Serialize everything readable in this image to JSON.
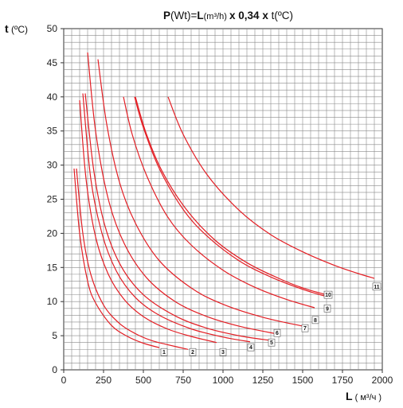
{
  "chart_data": {
    "type": "line",
    "title": "P(Wt)=L(m³/h) x 0,34 x t(ºC)",
    "title_parts": {
      "p": "P",
      "wt": "(Wt)=",
      "l": "L",
      "m3h": "(m³/h) ",
      "x1": "x 0,34 x ",
      "t": "t",
      "tc": "(ºC)"
    },
    "ylabel": "t (ºC)",
    "ylabel_parts": {
      "t": "t",
      "unit": " (ºC)"
    },
    "xlabel": "L ( м³/ч )",
    "xlabel_parts": {
      "l": "L",
      "unit": " ( м³/ч )"
    },
    "xlim": [
      0,
      2000
    ],
    "ylim": [
      0,
      50
    ],
    "x_ticks": [
      0,
      250,
      500,
      750,
      1000,
      1250,
      1500,
      1750,
      2000
    ],
    "y_ticks": [
      0,
      5,
      10,
      15,
      20,
      25,
      30,
      35,
      40,
      45,
      50
    ],
    "grid": true,
    "grid_minor_x": 50,
    "grid_minor_y": 1,
    "line_color": "#e31e24",
    "series": [
      {
        "name": "1",
        "label_at": [
          630,
          2.6
        ],
        "points": [
          [
            65,
            29.5
          ],
          [
            100,
            20
          ],
          [
            150,
            13
          ],
          [
            200,
            9.8
          ],
          [
            300,
            6.5
          ],
          [
            400,
            4.9
          ],
          [
            500,
            3.9
          ],
          [
            600,
            3.25
          ]
        ]
      },
      {
        "name": "2",
        "label_at": [
          810,
          2.6
        ],
        "points": [
          [
            80,
            29.5
          ],
          [
            120,
            20
          ],
          [
            170,
            14
          ],
          [
            250,
            9.5
          ],
          [
            350,
            6.8
          ],
          [
            450,
            5.3
          ],
          [
            550,
            4.3
          ],
          [
            650,
            3.7
          ],
          [
            780,
            3.0
          ]
        ]
      },
      {
        "name": "3",
        "label_at": [
          1000,
          2.6
        ],
        "points": [
          [
            100,
            39.5
          ],
          [
            140,
            28
          ],
          [
            200,
            19.5
          ],
          [
            280,
            14
          ],
          [
            380,
            10.3
          ],
          [
            500,
            7.8
          ],
          [
            650,
            6.0
          ],
          [
            800,
            4.9
          ],
          [
            960,
            4.0
          ]
        ]
      },
      {
        "name": "4",
        "label_at": [
          1175,
          3.3
        ],
        "points": [
          [
            120,
            40.5
          ],
          [
            170,
            28
          ],
          [
            240,
            20
          ],
          [
            330,
            14.5
          ],
          [
            450,
            10.6
          ],
          [
            600,
            8.0
          ],
          [
            800,
            6.0
          ],
          [
            1000,
            4.8
          ],
          [
            1170,
            4.1
          ]
        ]
      },
      {
        "name": "5",
        "label_at": [
          1305,
          4.0
        ],
        "points": [
          [
            135,
            40.5
          ],
          [
            190,
            29
          ],
          [
            260,
            21
          ],
          [
            360,
            15.2
          ],
          [
            500,
            11
          ],
          [
            700,
            7.9
          ],
          [
            900,
            6.1
          ],
          [
            1100,
            5.0
          ],
          [
            1300,
            4.3
          ]
        ]
      },
      {
        "name": "6",
        "label_at": [
          1340,
          5.4
        ],
        "points": [
          [
            150,
            46.5
          ],
          [
            200,
            35
          ],
          [
            280,
            25
          ],
          [
            380,
            18.5
          ],
          [
            520,
            13.5
          ],
          [
            700,
            10
          ],
          [
            900,
            7.8
          ],
          [
            1100,
            6.4
          ],
          [
            1330,
            5.3
          ]
        ]
      },
      {
        "name": "7",
        "label_at": [
          1515,
          6.1
        ],
        "points": [
          [
            215,
            45.5
          ],
          [
            270,
            36
          ],
          [
            350,
            27.5
          ],
          [
            450,
            21.5
          ],
          [
            600,
            16
          ],
          [
            800,
            12
          ],
          [
            1000,
            9.6
          ],
          [
            1250,
            7.7
          ],
          [
            1500,
            6.4
          ]
        ]
      },
      {
        "name": "8",
        "label_at": [
          1580,
          7.3
        ],
        "points": [
          [
            375,
            40
          ],
          [
            430,
            34.5
          ],
          [
            520,
            28.5
          ],
          [
            650,
            22.5
          ],
          [
            800,
            18.3
          ],
          [
            1000,
            14.6
          ],
          [
            1200,
            12.1
          ],
          [
            1400,
            10.3
          ],
          [
            1575,
            9.1
          ]
        ]
      },
      {
        "name": "9",
        "label_at": [
          1655,
          9.0
        ],
        "points": [
          [
            445,
            40
          ],
          [
            500,
            35.5
          ],
          [
            600,
            29.5
          ],
          [
            750,
            23.5
          ],
          [
            900,
            19.6
          ],
          [
            1100,
            16
          ],
          [
            1300,
            13.6
          ],
          [
            1500,
            11.8
          ],
          [
            1640,
            10.8
          ]
        ]
      },
      {
        "name": "10",
        "label_at": [
          1660,
          11.0
        ],
        "points": [
          [
            450,
            40
          ],
          [
            520,
            34.5
          ],
          [
            620,
            29
          ],
          [
            770,
            23.5
          ],
          [
            950,
            19
          ],
          [
            1150,
            15.7
          ],
          [
            1350,
            13.4
          ],
          [
            1500,
            12.0
          ],
          [
            1650,
            11.0
          ]
        ]
      },
      {
        "name": "11",
        "label_at": [
          1965,
          12.2
        ],
        "points": [
          [
            655,
            40
          ],
          [
            750,
            34.5
          ],
          [
            900,
            28.6
          ],
          [
            1100,
            23.4
          ],
          [
            1300,
            19.8
          ],
          [
            1500,
            17.3
          ],
          [
            1700,
            15.3
          ],
          [
            1850,
            14.1
          ],
          [
            1950,
            13.4
          ]
        ]
      }
    ]
  }
}
